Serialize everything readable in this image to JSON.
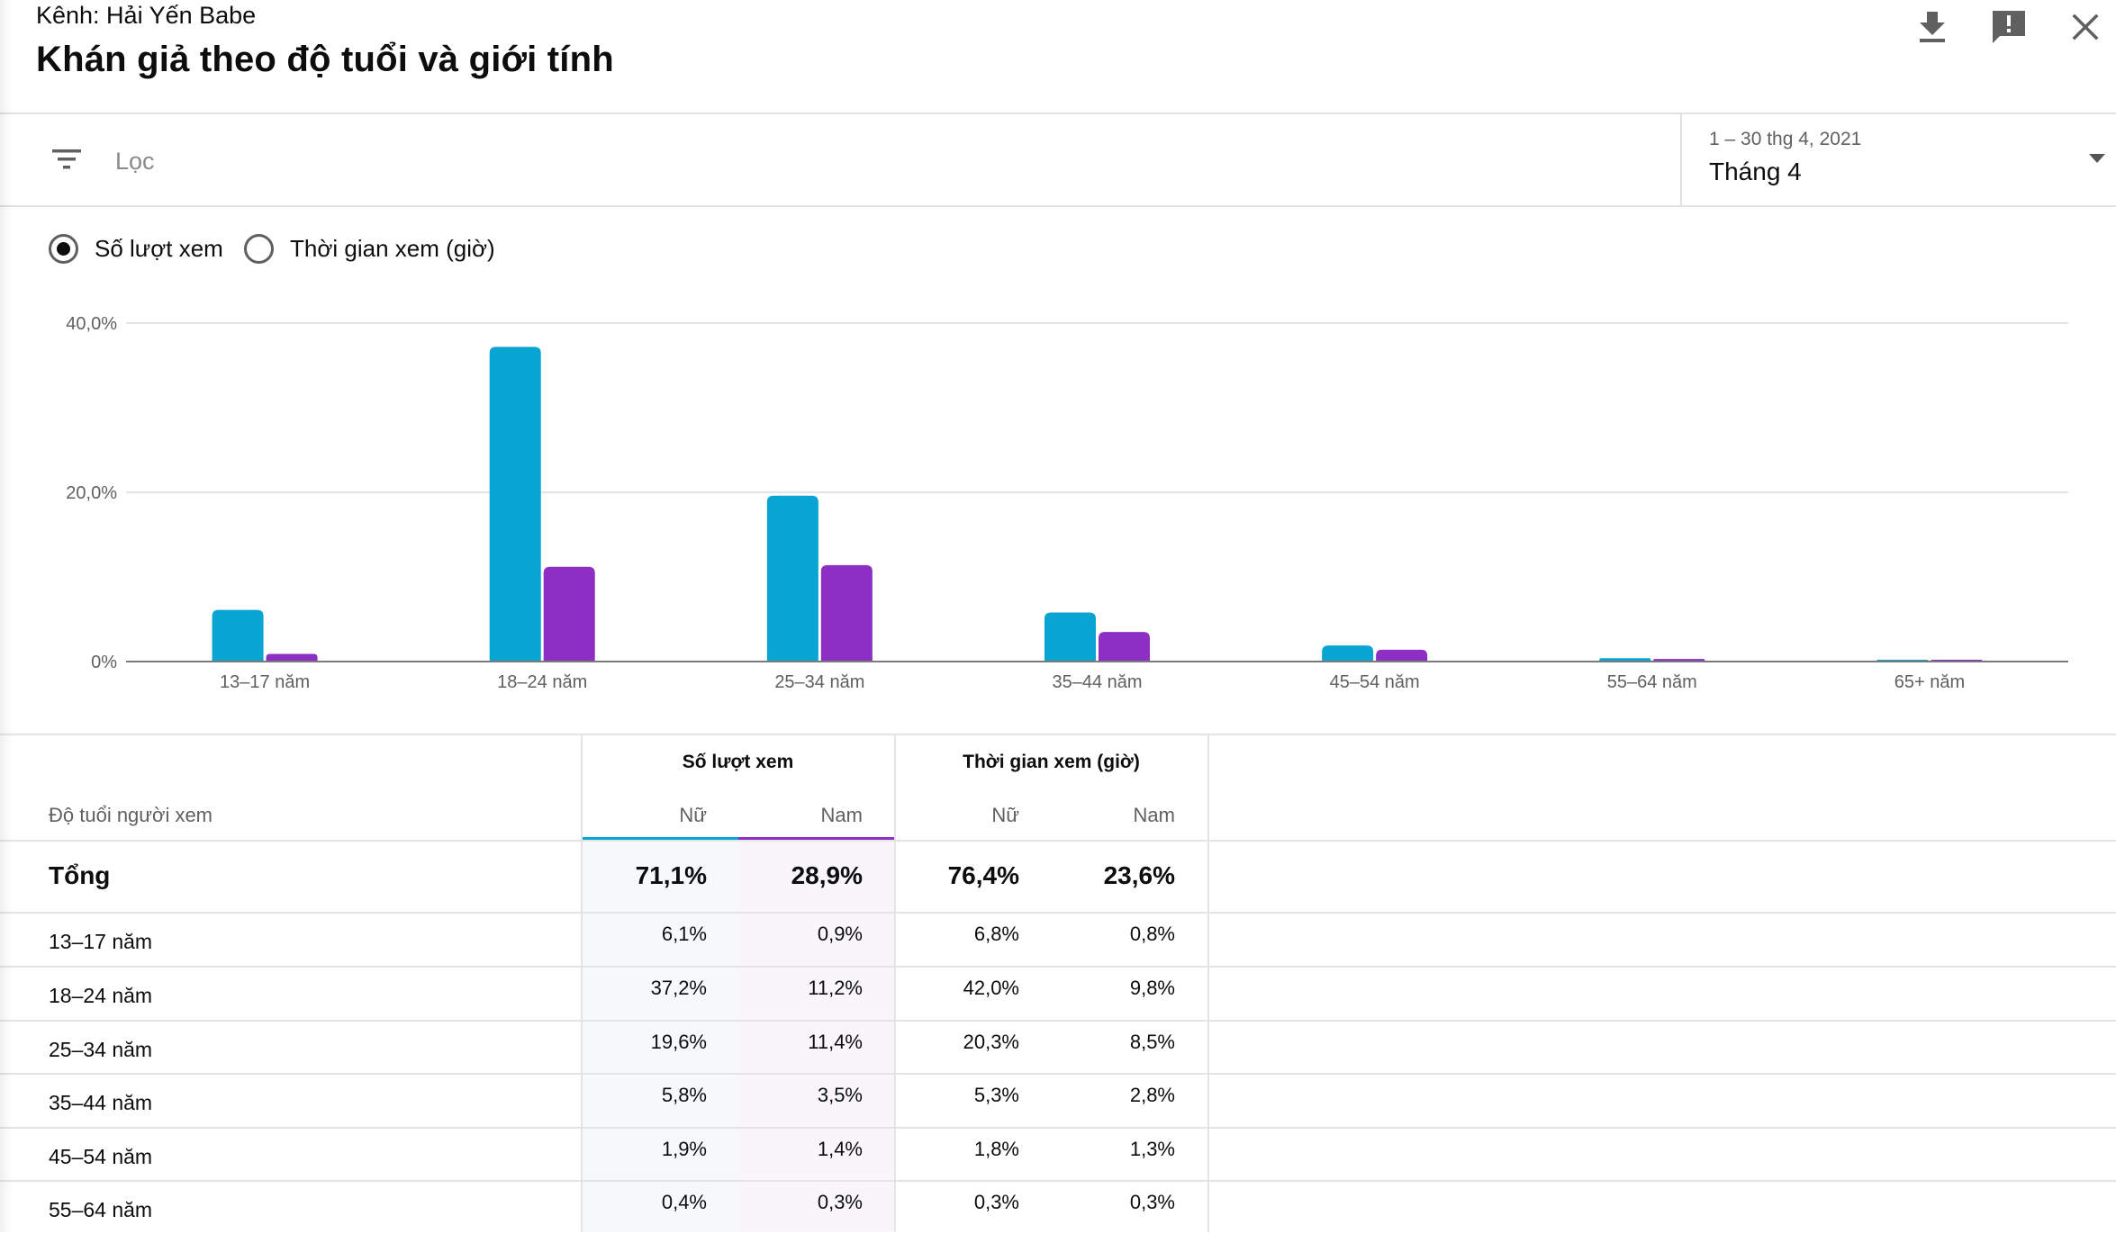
{
  "header": {
    "channel": "Kênh: Hải Yến Babe",
    "title": "Khán giả theo độ tuổi và giới tính"
  },
  "filter": {
    "placeholder": "Lọc"
  },
  "date": {
    "range": "1 – 30 thg 4, 2021",
    "label": "Tháng 4"
  },
  "radios": [
    {
      "label": "Số lượt xem",
      "selected": true
    },
    {
      "label": "Thời gian xem (giờ)",
      "selected": false
    }
  ],
  "colors": {
    "female": "#08a5d2",
    "male": "#8c2fc2"
  },
  "chart_data": {
    "type": "bar",
    "categories": [
      "13–17 năm",
      "18–24 năm",
      "25–34 năm",
      "35–44 năm",
      "45–54 năm",
      "55–64 năm",
      "65+ năm"
    ],
    "series": [
      {
        "name": "Nữ",
        "values": [
          6.1,
          37.2,
          19.6,
          5.8,
          1.9,
          0.4,
          0.2
        ]
      },
      {
        "name": "Nam",
        "values": [
          0.9,
          11.2,
          11.4,
          3.5,
          1.4,
          0.3,
          0.2
        ]
      }
    ],
    "yticks": [
      "0%",
      "20,0%",
      "40,0%"
    ],
    "ylim": [
      0,
      40
    ],
    "grid": true
  },
  "table": {
    "age_header": "Độ tuổi người xem",
    "groups": [
      "Số lượt xem",
      "Thời gian xem (giờ)"
    ],
    "subheaders": [
      "Nữ",
      "Nam",
      "Nữ",
      "Nam"
    ],
    "total": {
      "label": "Tổng",
      "values": [
        "71,1%",
        "28,9%",
        "76,4%",
        "23,6%"
      ]
    },
    "rows": [
      {
        "label": "13–17 năm",
        "values": [
          "6,1%",
          "0,9%",
          "6,8%",
          "0,8%"
        ]
      },
      {
        "label": "18–24 năm",
        "values": [
          "37,2%",
          "11,2%",
          "42,0%",
          "9,8%"
        ]
      },
      {
        "label": "25–34 năm",
        "values": [
          "19,6%",
          "11,4%",
          "20,3%",
          "8,5%"
        ]
      },
      {
        "label": "35–44 năm",
        "values": [
          "5,8%",
          "3,5%",
          "5,3%",
          "2,8%"
        ]
      },
      {
        "label": "45–54 năm",
        "values": [
          "1,9%",
          "1,4%",
          "1,8%",
          "1,3%"
        ]
      },
      {
        "label": "55–64 năm",
        "values": [
          "0,4%",
          "0,3%",
          "0,3%",
          "0,3%"
        ]
      }
    ]
  }
}
